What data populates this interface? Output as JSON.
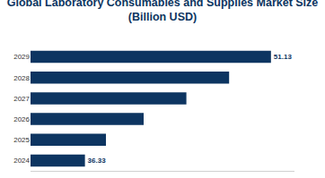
{
  "chart_data": {
    "type": "bar",
    "orientation": "horizontal",
    "title": "Global Laboratory Consumables and Supplies Market Size",
    "subtitle": "(Billion USD)",
    "categories": [
      "2024",
      "2025",
      "2026",
      "2027",
      "2028",
      "2029"
    ],
    "values": [
      36.33,
      38.0,
      41.0,
      44.4,
      47.8,
      51.13
    ],
    "value_labels": [
      "36.33",
      null,
      null,
      null,
      null,
      "51.13"
    ],
    "data_labels": true,
    "color": "#0d3561",
    "xlim": [
      32,
      53
    ],
    "tick_labels": "y",
    "grid": false
  }
}
